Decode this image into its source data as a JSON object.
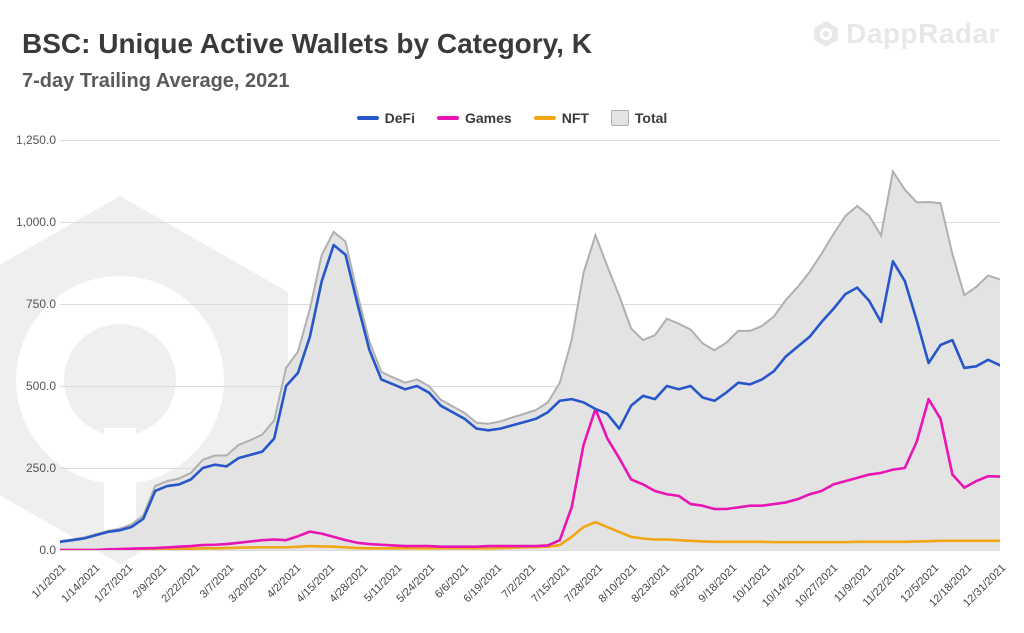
{
  "watermark": "DappRadar",
  "title": "BSC: Unique Active Wallets by Category, K",
  "subtitle": "7-day Trailing Average, 2021",
  "chart": {
    "type": "line+area",
    "background_color": "#ffffff",
    "grid_color": "#dcdcdc",
    "title_fontsize": 28,
    "subtitle_fontsize": 20,
    "label_fontsize": 12,
    "line_width_series": 2.6,
    "line_width_total": 2.0,
    "ylim": [
      0,
      1250
    ],
    "ytick_step": 250,
    "yticks": [
      "0.0",
      "250.0",
      "500.0",
      "750.0",
      "1,000.0",
      "1,250.0"
    ],
    "x_labels": [
      "1/1/2021",
      "1/14/2021",
      "1/27/2021",
      "2/9/2021",
      "2/22/2021",
      "3/7/2021",
      "3/20/2021",
      "4/2/2021",
      "4/15/2021",
      "4/28/2021",
      "5/11/2021",
      "5/24/2021",
      "6/6/2021",
      "6/19/2021",
      "7/2/2021",
      "7/15/2021",
      "7/28/2021",
      "8/10/2021",
      "8/23/2021",
      "9/5/2021",
      "9/18/2021",
      "10/1/2021",
      "10/14/2021",
      "10/27/2021",
      "11/9/2021",
      "11/22/2021",
      "12/5/2021",
      "12/18/2021",
      "12/31/2021"
    ],
    "legend": [
      {
        "label": "DeFi",
        "color": "#2656c9",
        "kind": "line"
      },
      {
        "label": "Games",
        "color": "#e815b4",
        "kind": "line"
      },
      {
        "label": "NFT",
        "color": "#f0a713",
        "kind": "line"
      },
      {
        "label": "Total",
        "color": "#bdbdbd",
        "fill": "#e3e3e3",
        "kind": "area"
      }
    ],
    "series": {
      "DeFi": [
        25,
        30,
        35,
        45,
        55,
        60,
        70,
        95,
        180,
        195,
        200,
        215,
        250,
        260,
        255,
        280,
        290,
        300,
        340,
        500,
        540,
        650,
        820,
        930,
        900,
        750,
        610,
        520,
        505,
        490,
        500,
        480,
        440,
        420,
        400,
        370,
        365,
        370,
        380,
        390,
        400,
        420,
        455,
        460,
        450,
        430,
        415,
        370,
        440,
        470,
        460,
        500,
        490,
        500,
        465,
        455,
        480,
        510,
        505,
        520,
        545,
        590,
        620,
        650,
        695,
        735,
        780,
        800,
        760,
        695,
        880,
        820,
        700,
        570,
        625,
        640,
        555,
        560,
        580,
        563
      ],
      "Games": [
        0,
        0,
        0,
        0,
        2,
        3,
        4,
        5,
        6,
        8,
        10,
        12,
        15,
        16,
        18,
        22,
        26,
        30,
        32,
        30,
        42,
        56,
        50,
        40,
        30,
        22,
        18,
        16,
        14,
        12,
        12,
        12,
        10,
        10,
        10,
        10,
        12,
        12,
        12,
        12,
        12,
        14,
        30,
        130,
        320,
        430,
        340,
        280,
        215,
        200,
        180,
        170,
        165,
        140,
        135,
        125,
        125,
        130,
        135,
        135,
        140,
        145,
        155,
        170,
        180,
        200,
        210,
        220,
        230,
        235,
        245,
        250,
        330,
        460,
        400,
        230,
        190,
        210,
        225,
        224
      ],
      "NFT": [
        0,
        0,
        0,
        0,
        0,
        0,
        1,
        1,
        2,
        2,
        3,
        4,
        5,
        5,
        6,
        7,
        8,
        8,
        8,
        8,
        10,
        12,
        11,
        10,
        8,
        6,
        5,
        5,
        5,
        5,
        5,
        5,
        5,
        5,
        5,
        5,
        5,
        6,
        7,
        8,
        9,
        10,
        15,
        40,
        70,
        85,
        70,
        55,
        40,
        35,
        32,
        32,
        30,
        28,
        26,
        25,
        25,
        25,
        25,
        25,
        24,
        24,
        24,
        24,
        24,
        24,
        24,
        25,
        25,
        25,
        25,
        25,
        26,
        27,
        28,
        28,
        28,
        28,
        28,
        28
      ],
      "Total": [
        27,
        32,
        38,
        48,
        58,
        65,
        78,
        105,
        195,
        210,
        218,
        235,
        275,
        288,
        288,
        320,
        335,
        352,
        395,
        555,
        605,
        735,
        900,
        970,
        940,
        780,
        636,
        543,
        526,
        510,
        520,
        500,
        458,
        438,
        418,
        388,
        385,
        392,
        404,
        415,
        427,
        450,
        510,
        640,
        845,
        960,
        865,
        775,
        675,
        640,
        655,
        705,
        690,
        672,
        630,
        609,
        632,
        668,
        668,
        683,
        712,
        762,
        802,
        848,
        903,
        963,
        1018,
        1049,
        1019,
        959,
        1154,
        1099,
        1060,
        1061,
        1057,
        902,
        777,
        802,
        837,
        825
      ]
    },
    "colors": {
      "DeFi": "#2656c9",
      "Games": "#e815b4",
      "NFT": "#f0a713",
      "Total_line": "#b0b0b0",
      "Total_fill": "#e3e3e3"
    }
  }
}
